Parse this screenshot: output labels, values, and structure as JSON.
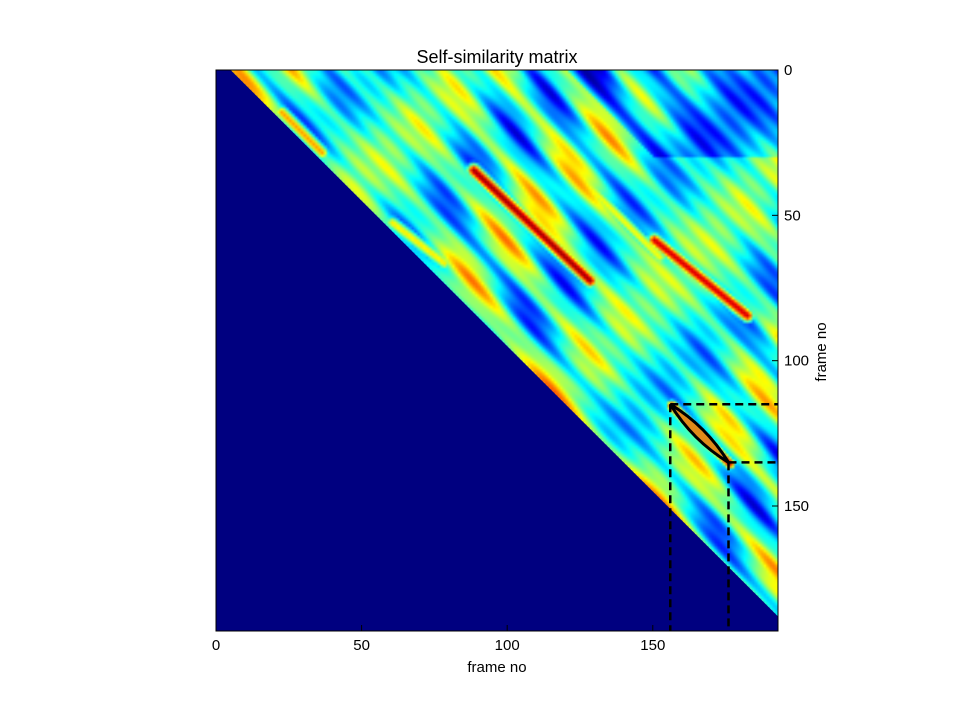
{
  "chart_data": {
    "type": "heatmap",
    "title": "Self-similarity matrix",
    "xlabel": "frame no",
    "ylabel": "frame no",
    "xlim": [
      0,
      193
    ],
    "ylim": [
      193,
      0
    ],
    "n_frames": 193,
    "x_ticks": [
      0,
      50,
      100,
      150
    ],
    "y_ticks": [
      0,
      50,
      100,
      150
    ],
    "y_axis_side": "right",
    "colormap": "jet",
    "lower_triangle_fill": "#000080",
    "diagonal_offset": 5,
    "high_similarity_stripes": [
      {
        "x_start": 88,
        "y_start": 34,
        "x_end": 128,
        "y_end": 72,
        "peak": 0.95
      },
      {
        "x_start": 150,
        "y_start": 58,
        "x_end": 182,
        "y_end": 84,
        "peak": 0.9
      },
      {
        "x_start": 22,
        "y_start": 14,
        "x_end": 36,
        "y_end": 28,
        "peak": 0.7
      },
      {
        "x_start": 60,
        "y_start": 52,
        "x_end": 78,
        "y_end": 66,
        "peak": 0.62
      },
      {
        "x_start": 128,
        "y_start": 40,
        "x_end": 152,
        "y_end": 64,
        "peak": 0.6
      }
    ],
    "highlighted_segment": {
      "x_start": 156,
      "y_start": 115,
      "x_end": 176,
      "y_end": 135,
      "guide_style": "dashed",
      "outline_color": "#000000"
    }
  }
}
